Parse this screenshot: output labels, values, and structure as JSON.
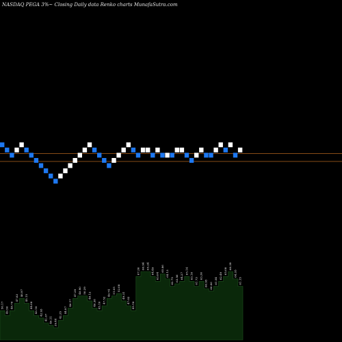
{
  "header": {
    "title": "NASDAQ PEGA 3%~  Closing Daily data  Renko  charts MunafaSutra.com"
  },
  "colors": {
    "background": "#000000",
    "up_brick": "#ffffff",
    "down_brick": "#1e78f0",
    "reference_line": "#b4641e",
    "volume_fill": "#0a280a",
    "volume_outline": "#1e501e",
    "title_text": "#e6e6e6"
  },
  "chart_data": [
    {
      "type": "renko",
      "brick_size_label": "3%",
      "bricks": [
        {
          "level": 3,
          "dir": "down"
        },
        {
          "level": 2,
          "dir": "down"
        },
        {
          "level": 1,
          "dir": "down"
        },
        {
          "level": 2,
          "dir": "up"
        },
        {
          "level": 3,
          "dir": "up"
        },
        {
          "level": 2,
          "dir": "down"
        },
        {
          "level": 1,
          "dir": "down"
        },
        {
          "level": 0,
          "dir": "down"
        },
        {
          "level": -1,
          "dir": "down"
        },
        {
          "level": -2,
          "dir": "down"
        },
        {
          "level": -3,
          "dir": "down"
        },
        {
          "level": -4,
          "dir": "down"
        },
        {
          "level": -3,
          "dir": "up"
        },
        {
          "level": -2,
          "dir": "up"
        },
        {
          "level": -1,
          "dir": "up"
        },
        {
          "level": 0,
          "dir": "up"
        },
        {
          "level": 1,
          "dir": "up"
        },
        {
          "level": 2,
          "dir": "up"
        },
        {
          "level": 3,
          "dir": "up"
        },
        {
          "level": 2,
          "dir": "down"
        },
        {
          "level": 1,
          "dir": "down"
        },
        {
          "level": 0,
          "dir": "down"
        },
        {
          "level": -1,
          "dir": "down"
        },
        {
          "level": 0,
          "dir": "up"
        },
        {
          "level": 1,
          "dir": "up"
        },
        {
          "level": 2,
          "dir": "up"
        },
        {
          "level": 3,
          "dir": "up"
        },
        {
          "level": 2,
          "dir": "down"
        },
        {
          "level": 1,
          "dir": "down"
        },
        {
          "level": 2,
          "dir": "up"
        },
        {
          "level": 2,
          "dir": "up"
        },
        {
          "level": 1,
          "dir": "down"
        },
        {
          "level": 2,
          "dir": "up"
        },
        {
          "level": 1,
          "dir": "down"
        },
        {
          "level": 1,
          "dir": "up"
        },
        {
          "level": 1,
          "dir": "down"
        },
        {
          "level": 2,
          "dir": "up"
        },
        {
          "level": 2,
          "dir": "up"
        },
        {
          "level": 1,
          "dir": "down"
        },
        {
          "level": 0,
          "dir": "down"
        },
        {
          "level": 1,
          "dir": "up"
        },
        {
          "level": 2,
          "dir": "up"
        },
        {
          "level": 1,
          "dir": "down"
        },
        {
          "level": 1,
          "dir": "down"
        },
        {
          "level": 2,
          "dir": "up"
        },
        {
          "level": 3,
          "dir": "up"
        },
        {
          "level": 2,
          "dir": "down"
        },
        {
          "level": 3,
          "dir": "up"
        },
        {
          "level": 1,
          "dir": "down"
        },
        {
          "level": 2,
          "dir": "up"
        }
      ],
      "reference_lines": [
        {
          "level": 1.3
        },
        {
          "level": -0.2
        }
      ]
    },
    {
      "type": "area",
      "name": "volume",
      "values": [
        52,
        50,
        52,
        55,
        57,
        55,
        52,
        50,
        49,
        47,
        46,
        45,
        48,
        50,
        53,
        57,
        58,
        58,
        56,
        53,
        52,
        54,
        57,
        58,
        59,
        56,
        54,
        52,
        66,
        68,
        68,
        66,
        64,
        67,
        65,
        62,
        63,
        64,
        66,
        64,
        62,
        64,
        61,
        60,
        62,
        64,
        66,
        68,
        65,
        62
      ],
      "labels": [
        "50.17",
        "49.56",
        "48.76",
        "47.83",
        "46.97",
        "45.15",
        "44.08",
        "43.18",
        "42.93",
        "41.67",
        "40.11",
        "39.44",
        "42.35",
        "44.87",
        "46.17",
        "47.29",
        "48.90",
        "50.29",
        "48.12",
        "46.38",
        "45.10",
        "47.52",
        "49.74",
        "51.05",
        "52.08",
        "49.31",
        "47.02",
        "45.18",
        "67.30",
        "66.94",
        "65.24",
        "64.49",
        "63.04",
        "65.86",
        "64.13",
        "62.75",
        "63.56",
        "64.27",
        "65.14",
        "63.18",
        "61.73",
        "63.30",
        "60.95",
        "60.06",
        "61.54",
        "62.49",
        "65.08",
        "66.39",
        "64.35",
        "61.15"
      ]
    }
  ]
}
